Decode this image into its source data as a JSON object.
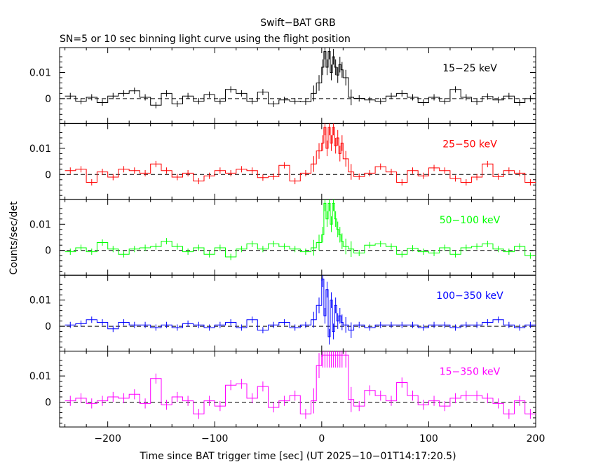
{
  "chart_data": {
    "type": "line",
    "title": "Swift−BAT GRB",
    "subtitle": "SN=5 or 10 sec binning light curve using the flight position",
    "xlabel": "Time since BAT trigger time [sec] (UT 2025−10−01T14:17:20.5)",
    "ylabel": "Counts/sec/det",
    "xlim": [
      -245,
      200
    ],
    "ylim": [
      -0.0095,
      0.0195
    ],
    "x_ticks": [
      -200,
      -100,
      0,
      100,
      200
    ],
    "x_tick_labels": [
      "−200",
      "−100",
      "0",
      "100",
      "200"
    ],
    "y_ticks": [
      0,
      0.01
    ],
    "y_tick_labels": [
      "0",
      "0.01"
    ],
    "zero_line": "dashed",
    "panels": [
      {
        "name": "15−25 keV",
        "color": "#000000",
        "x": [
          -240,
          -230,
          -220,
          -210,
          -200,
          -190,
          -180,
          -170,
          -160,
          -150,
          -140,
          -130,
          -120,
          -110,
          -100,
          -90,
          -80,
          -70,
          -60,
          -50,
          -40,
          -30,
          -20,
          -10,
          -5,
          0,
          2,
          4,
          6,
          8,
          10,
          12,
          14,
          16,
          18,
          20,
          25,
          30,
          40,
          50,
          60,
          70,
          80,
          90,
          100,
          110,
          120,
          130,
          140,
          150,
          160,
          170,
          180,
          190
        ],
        "y": [
          0.001,
          -0.001,
          0.0005,
          -0.0015,
          0.001,
          0.002,
          0.003,
          0.0005,
          -0.0025,
          0.002,
          -0.002,
          0.001,
          -0.001,
          0.0015,
          -0.001,
          0.0035,
          0.002,
          -0.001,
          0.0025,
          -0.002,
          -0.0005,
          -0.001,
          -0.0012,
          0.002,
          0.006,
          0.012,
          0.018,
          0.012,
          0.018,
          0.01,
          0.016,
          0.012,
          0.009,
          0.013,
          0.011,
          0.008,
          0.0005,
          0.0001,
          -0.0005,
          -0.001,
          0.001,
          0.002,
          0.0005,
          -0.0015,
          0.0005,
          -0.001,
          0.0035,
          0.0005,
          -0.0012,
          0.0008,
          -0.0005,
          0.001,
          -0.0015,
          0
        ]
      },
      {
        "name": "25−50 keV",
        "color": "#ff0000",
        "x": [
          -240,
          -230,
          -220,
          -210,
          -200,
          -190,
          -180,
          -170,
          -160,
          -150,
          -140,
          -130,
          -120,
          -110,
          -100,
          -90,
          -80,
          -70,
          -60,
          -50,
          -40,
          -30,
          -20,
          -10,
          -5,
          0,
          2,
          4,
          6,
          8,
          10,
          12,
          14,
          16,
          18,
          20,
          25,
          30,
          40,
          50,
          60,
          70,
          80,
          90,
          100,
          110,
          120,
          130,
          140,
          150,
          160,
          170,
          180,
          190
        ],
        "y": [
          0.0015,
          0.002,
          -0.003,
          0.001,
          -0.001,
          0.002,
          0.0015,
          0.0005,
          0.004,
          0.0015,
          -0.001,
          0.0005,
          -0.0025,
          -0.0005,
          0.0015,
          0.0005,
          0.002,
          0.0015,
          -0.0012,
          -0.0008,
          0.0035,
          -0.0025,
          0.0005,
          0.004,
          0.009,
          0.012,
          0.018,
          0.01,
          0.018,
          0.012,
          0.018,
          0.011,
          0.014,
          0.008,
          0.012,
          0.006,
          0.001,
          -0.0008,
          0.0005,
          0.003,
          0.001,
          -0.003,
          0.0015,
          -0.0005,
          0.0025,
          0.0015,
          -0.0015,
          -0.003,
          -0.001,
          0.004,
          -0.0008,
          0.0015,
          0.0005,
          -0.003
        ]
      },
      {
        "name": "50−100 keV",
        "color": "#00ff00",
        "x": [
          -240,
          -230,
          -220,
          -210,
          -200,
          -190,
          -180,
          -170,
          -160,
          -150,
          -140,
          -130,
          -120,
          -110,
          -100,
          -90,
          -80,
          -70,
          -60,
          -50,
          -40,
          -30,
          -20,
          -10,
          -5,
          0,
          2,
          4,
          6,
          8,
          10,
          12,
          14,
          16,
          18,
          20,
          25,
          30,
          40,
          50,
          60,
          70,
          80,
          90,
          100,
          110,
          120,
          130,
          140,
          150,
          160,
          170,
          180,
          190
        ],
        "y": [
          -0.0005,
          0.001,
          -0.0005,
          0.003,
          0.0005,
          -0.0015,
          0.0005,
          0.001,
          0.0015,
          0.0035,
          0.0015,
          -0.0005,
          0.001,
          -0.0015,
          0.001,
          -0.0025,
          0.0005,
          0.0025,
          0.0005,
          0.0025,
          0.0015,
          0.0005,
          -0.0005,
          0.001,
          0.003,
          0.006,
          0.018,
          0.012,
          0.018,
          0.01,
          0.018,
          0.012,
          0.008,
          0.006,
          0.0035,
          0.0015,
          0.0005,
          -0.001,
          0.002,
          0.0025,
          0.0015,
          -0.0015,
          0.0008,
          -0.0005,
          -0.001,
          0.001,
          -0.0015,
          0.001,
          0.0015,
          0.0025,
          0.0005,
          -0.0005,
          0.0015,
          -0.002
        ]
      },
      {
        "name": "100−350 keV",
        "color": "#0000ff",
        "x": [
          -240,
          -230,
          -220,
          -210,
          -200,
          -190,
          -180,
          -170,
          -160,
          -150,
          -140,
          -130,
          -120,
          -110,
          -100,
          -90,
          -80,
          -70,
          -60,
          -50,
          -40,
          -30,
          -20,
          -10,
          -5,
          0,
          2,
          4,
          6,
          8,
          10,
          12,
          14,
          16,
          18,
          20,
          25,
          30,
          40,
          50,
          60,
          70,
          80,
          90,
          100,
          110,
          120,
          130,
          140,
          150,
          160,
          170,
          180,
          190
        ],
        "y": [
          0.0005,
          0.001,
          0.0025,
          0.0015,
          -0.001,
          0.0015,
          0.0005,
          0.0005,
          -0.0005,
          0.0005,
          -0.0005,
          0.001,
          0.0005,
          -0.0005,
          0.0005,
          0.0015,
          -0.0005,
          0.0025,
          -0.0015,
          0.0005,
          0.0015,
          -0.0005,
          0.0005,
          0.0025,
          0.008,
          0.018,
          0.004,
          0.014,
          -0.004,
          0.01,
          -0.002,
          0.008,
          0.002,
          0.004,
          0.0015,
          0.0005,
          -0.0015,
          0.0005,
          -0.0005,
          0.0005,
          0.0005,
          0.0005,
          0.0005,
          -0.0005,
          0.0005,
          0.0005,
          -0.0005,
          0.0005,
          0.0005,
          0.0015,
          0.0025,
          0.0005,
          -0.0005,
          0.0005
        ]
      },
      {
        "name": "15−350 keV",
        "color": "#ff00ff",
        "x": [
          -240,
          -230,
          -220,
          -210,
          -200,
          -190,
          -180,
          -170,
          -160,
          -150,
          -140,
          -130,
          -120,
          -110,
          -100,
          -90,
          -80,
          -70,
          -60,
          -50,
          -40,
          -30,
          -20,
          -10,
          -5,
          0,
          2,
          4,
          6,
          8,
          10,
          12,
          14,
          16,
          18,
          20,
          25,
          30,
          40,
          50,
          60,
          70,
          80,
          90,
          100,
          110,
          120,
          130,
          140,
          150,
          160,
          170,
          180,
          190
        ],
        "y": [
          0.0005,
          0.0015,
          -0.0005,
          0.0005,
          0.002,
          0.0015,
          0.003,
          -0.0005,
          0.009,
          -0.001,
          0.002,
          0.0005,
          -0.0045,
          0.0005,
          -0.0015,
          0.0065,
          0.007,
          0.0015,
          0.006,
          -0.002,
          0.0005,
          0.0025,
          -0.0045,
          0.0005,
          0.014,
          0.018,
          0.018,
          0.018,
          0.018,
          0.018,
          0.018,
          0.018,
          0.018,
          0.018,
          0.018,
          0.018,
          0.001,
          -0.0015,
          0.0045,
          0.0025,
          0.0005,
          0.0075,
          0.0025,
          -0.001,
          0.0005,
          -0.0015,
          0.0015,
          0.0025,
          0.0025,
          0.0015,
          -0.0005,
          -0.0045,
          0.0005,
          -0.0045
        ]
      }
    ]
  }
}
